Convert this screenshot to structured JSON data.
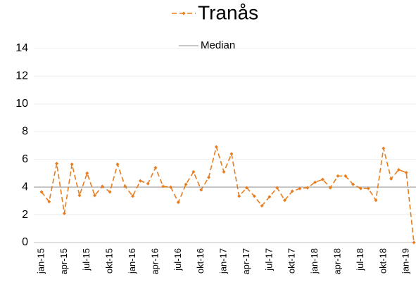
{
  "chart_data": {
    "type": "line",
    "categories": [
      "jan-15",
      null,
      null,
      "apr-15",
      null,
      null,
      "jul-15",
      null,
      null,
      "okt-15",
      null,
      null,
      "jan-16",
      null,
      null,
      "apr-16",
      null,
      null,
      "jul-16",
      null,
      null,
      "okt-16",
      null,
      null,
      "jan-17",
      null,
      null,
      "apr-17",
      null,
      null,
      "jul-17",
      null,
      null,
      "okt-17",
      null,
      null,
      "jan-18",
      null,
      null,
      "apr-18",
      null,
      null,
      "jul-18",
      null,
      null,
      "okt-18",
      null,
      null,
      "jan-19",
      null
    ],
    "series": [
      {
        "name": "Tranås",
        "color": "#e87d1e",
        "values": [
          3.65,
          2.95,
          5.7,
          2.1,
          5.65,
          3.4,
          5.0,
          3.4,
          4.05,
          3.65,
          5.65,
          4.05,
          3.35,
          4.45,
          4.25,
          5.4,
          4.05,
          4.0,
          2.9,
          4.2,
          5.1,
          3.8,
          4.7,
          6.9,
          5.1,
          6.4,
          3.35,
          3.95,
          3.35,
          2.65,
          3.3,
          3.95,
          3.05,
          3.7,
          3.9,
          3.95,
          4.35,
          4.55,
          3.95,
          4.8,
          4.8,
          4.2,
          3.9,
          3.9,
          3.05,
          6.8,
          4.6,
          5.25,
          5.05,
          0
        ]
      }
    ],
    "median": {
      "name": "Median",
      "value": 4.0,
      "color": "#a6a6a6"
    },
    "ylim": [
      0,
      14
    ],
    "yticks": [
      0,
      2,
      4,
      6,
      8,
      10,
      12,
      14
    ],
    "grid": true
  }
}
